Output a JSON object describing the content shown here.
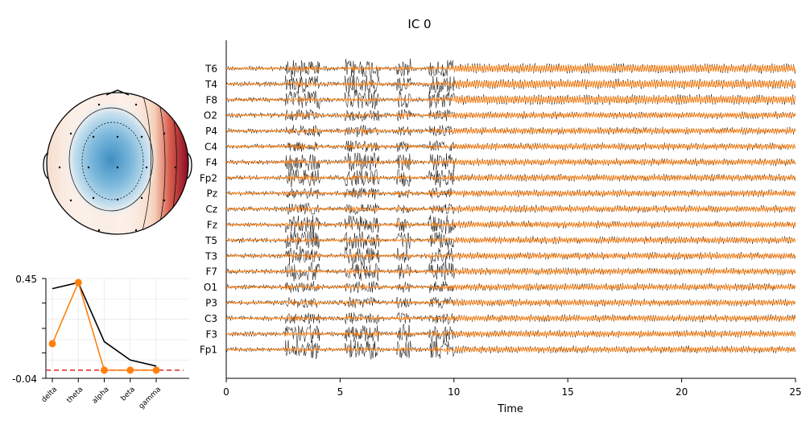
{
  "chart_data": [
    {
      "type": "line",
      "title": "IC 0",
      "xlabel": "Time",
      "ylabel": "",
      "xlim": [
        0,
        25
      ],
      "xticks": [
        0,
        5,
        10,
        15,
        20,
        25
      ],
      "channels": [
        "T6",
        "T4",
        "F8",
        "O2",
        "P4",
        "C4",
        "F4",
        "Fp2",
        "Pz",
        "Cz",
        "Fz",
        "T5",
        "T3",
        "F7",
        "O1",
        "P3",
        "C3",
        "F3",
        "Fp1"
      ],
      "burst_intervals": [
        [
          2.6,
          4.1
        ],
        [
          5.2,
          6.7
        ],
        [
          7.5,
          8.1
        ],
        [
          8.9,
          10.0
        ]
      ],
      "series": [
        {
          "color": "#000000"
        },
        {
          "color": "#ff7f0e"
        }
      ],
      "grid": false
    },
    {
      "type": "heatmap",
      "title": "",
      "colormap": "RdBu_r"
    },
    {
      "type": "line",
      "title": "",
      "categories": [
        "delta",
        "theta",
        "alpha",
        "beta",
        "gamma"
      ],
      "ylim_labels": [
        "0.45",
        "-0.04"
      ],
      "ylim": [
        -0.04,
        0.45
      ],
      "series": [
        {
          "color": "#000000",
          "values": [
            0.4,
            0.43,
            0.14,
            0.05,
            0.02
          ]
        },
        {
          "color": "#ff7f0e",
          "values": [
            0.13,
            0.43,
            0.0,
            0.0,
            0.0
          ]
        }
      ],
      "reference_line": {
        "value": 0.0,
        "color": "#d62728",
        "style": "dashed"
      },
      "grid": true
    }
  ]
}
